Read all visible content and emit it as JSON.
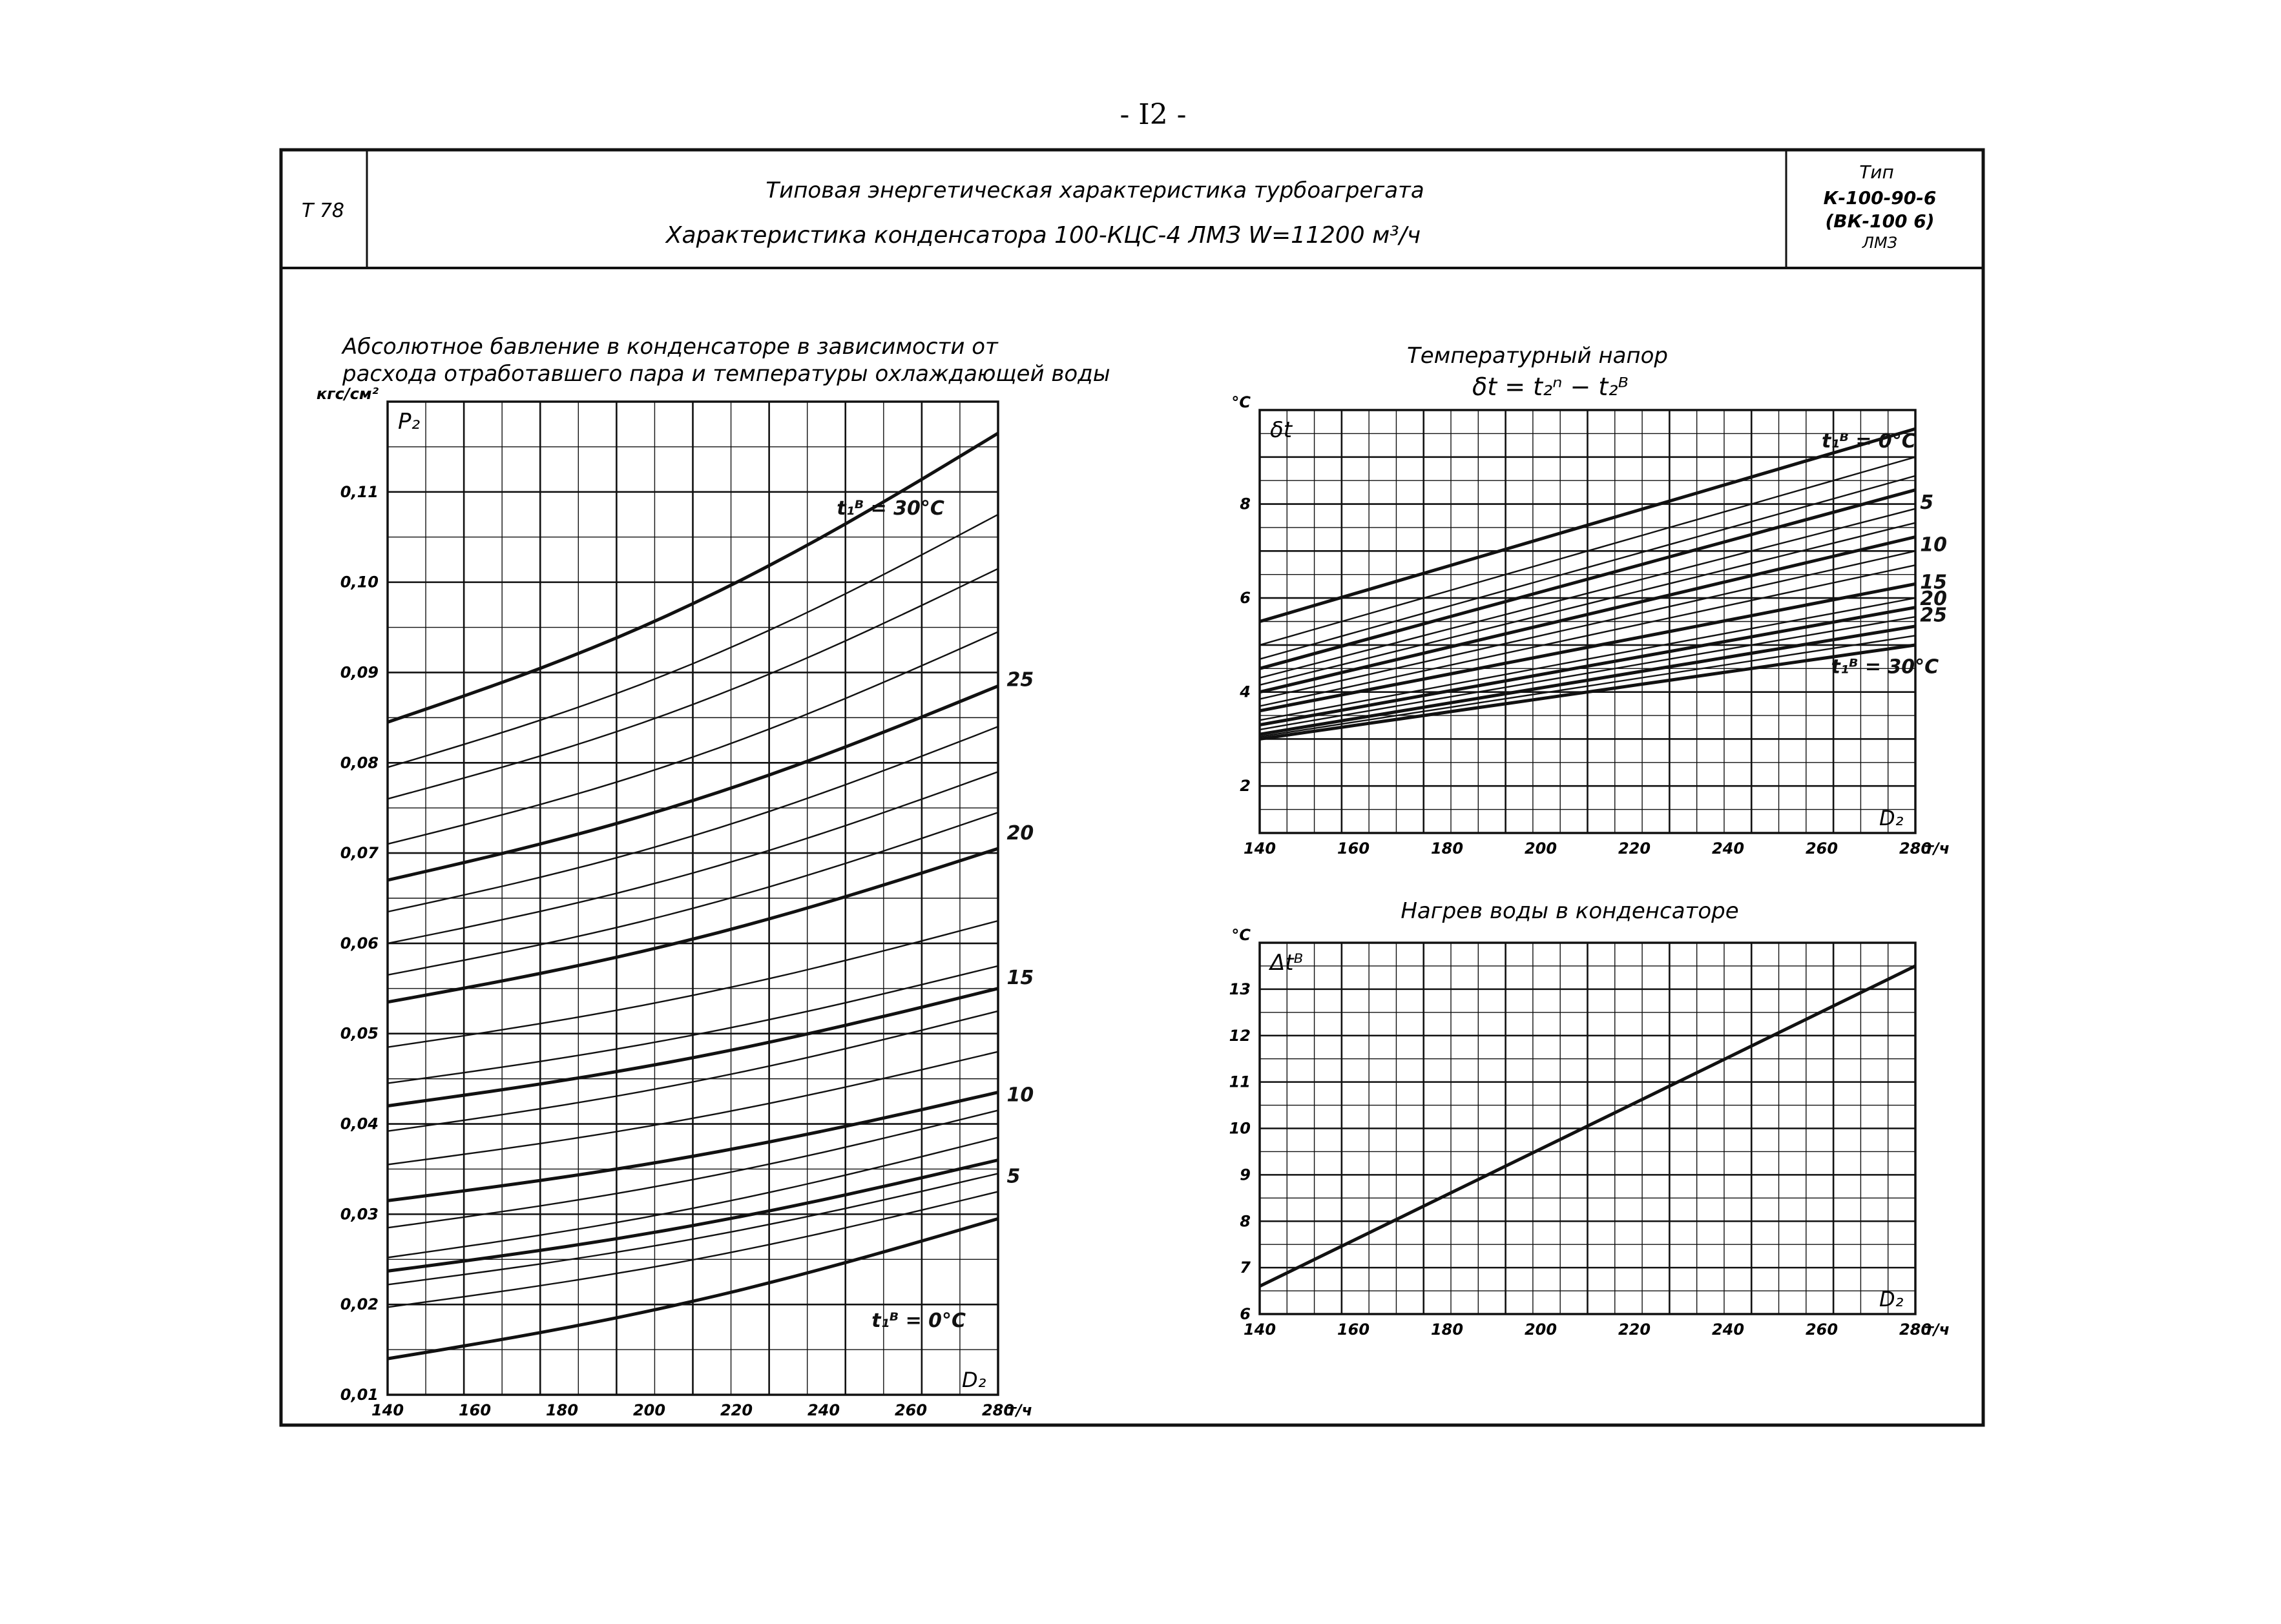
{
  "page": {
    "number": "- I2 -"
  },
  "header": {
    "code": "Т 78",
    "title_line1": "Типовая энергетическая характеристика турбоагрегата",
    "title_line2": "Характеристика конденсатора 100-КЦС-4 ЛМЗ W=11200 м³/ч",
    "type_label": "Тип",
    "type_line1": "К-100-90-6",
    "type_line2": "(ВК-100 6)",
    "type_line3": "ЛМЗ"
  },
  "colors": {
    "ink": "#111111",
    "paper": "#ffffff"
  },
  "chart_data": [
    {
      "id": "pressure",
      "type": "line",
      "title": "Абсолютное бавление в конденсаторе в зависимости от расхода отработавшего пара и температуры охлаждающей воды",
      "ylabel_unit": "кгс/см²",
      "ylabel": "P₂",
      "xlabel": "D₂",
      "xlabel_unit": "т/ч",
      "xlim": [
        140,
        280
      ],
      "ylim": [
        0.01,
        0.12
      ],
      "x_ticks": [
        "140",
        "160",
        "180",
        "200",
        "220",
        "240",
        "260",
        "280"
      ],
      "y_ticks": [
        "0,01",
        "0,02",
        "0,03",
        "0,04",
        "0,05",
        "0,06",
        "0,07",
        "0,08",
        "0,09",
        "0,10",
        "0,11"
      ],
      "series_labels": [
        {
          "text": "t₁ᴮ = 30°C",
          "x": 243,
          "y": 0.1075
        },
        {
          "text": "t₁ᴮ = 0°C",
          "x": 251,
          "y": 0.0175
        },
        {
          "text": "25",
          "x": 282,
          "y": 0.0885
        },
        {
          "text": "20",
          "x": 282,
          "y": 0.0715
        },
        {
          "text": "15",
          "x": 282,
          "y": 0.0555
        },
        {
          "text": "10",
          "x": 282,
          "y": 0.0425
        },
        {
          "text": "5",
          "x": 282,
          "y": 0.0335
        }
      ],
      "series": [
        {
          "t": 0,
          "bold": true,
          "x": [
            140,
            280
          ],
          "y": [
            0.014,
            0.0295
          ]
        },
        {
          "t": 2,
          "bold": false,
          "x": [
            140,
            280
          ],
          "y": [
            0.0197,
            0.0325
          ]
        },
        {
          "t": 4,
          "bold": false,
          "x": [
            140,
            280
          ],
          "y": [
            0.0222,
            0.0345
          ]
        },
        {
          "t": 5,
          "bold": true,
          "x": [
            140,
            280
          ],
          "y": [
            0.0237,
            0.036
          ]
        },
        {
          "t": 6,
          "bold": false,
          "x": [
            140,
            280
          ],
          "y": [
            0.0252,
            0.0385
          ]
        },
        {
          "t": 8,
          "bold": false,
          "x": [
            140,
            280
          ],
          "y": [
            0.0285,
            0.0415
          ]
        },
        {
          "t": 10,
          "bold": true,
          "x": [
            140,
            280
          ],
          "y": [
            0.0315,
            0.0435
          ]
        },
        {
          "t": 12,
          "bold": false,
          "x": [
            140,
            280
          ],
          "y": [
            0.0355,
            0.048
          ]
        },
        {
          "t": 14,
          "bold": false,
          "x": [
            140,
            280
          ],
          "y": [
            0.0392,
            0.0525
          ]
        },
        {
          "t": 15,
          "bold": true,
          "x": [
            140,
            280
          ],
          "y": [
            0.042,
            0.055
          ]
        },
        {
          "t": 16,
          "bold": false,
          "x": [
            140,
            280
          ],
          "y": [
            0.0445,
            0.0575
          ]
        },
        {
          "t": 18,
          "bold": false,
          "x": [
            140,
            280
          ],
          "y": [
            0.0485,
            0.0625
          ]
        },
        {
          "t": 20,
          "bold": true,
          "x": [
            140,
            280
          ],
          "y": [
            0.0535,
            0.0705
          ]
        },
        {
          "t": 21,
          "bold": false,
          "x": [
            140,
            280
          ],
          "y": [
            0.0565,
            0.0745
          ]
        },
        {
          "t": 22,
          "bold": false,
          "x": [
            140,
            280
          ],
          "y": [
            0.06,
            0.079
          ]
        },
        {
          "t": 24,
          "bold": false,
          "x": [
            140,
            280
          ],
          "y": [
            0.0635,
            0.084
          ]
        },
        {
          "t": 25,
          "bold": true,
          "x": [
            140,
            280
          ],
          "y": [
            0.067,
            0.0885
          ]
        },
        {
          "t": 26,
          "bold": false,
          "x": [
            140,
            280
          ],
          "y": [
            0.071,
            0.0945
          ]
        },
        {
          "t": 28,
          "bold": false,
          "x": [
            140,
            280
          ],
          "y": [
            0.076,
            0.1015
          ]
        },
        {
          "t": 29,
          "bold": false,
          "x": [
            140,
            280
          ],
          "y": [
            0.0795,
            0.1075
          ]
        },
        {
          "t": 30,
          "bold": true,
          "x": [
            140,
            280
          ],
          "y": [
            0.0845,
            0.1165
          ]
        }
      ]
    },
    {
      "id": "temp_head",
      "type": "line",
      "title": "Температурный напор",
      "subtitle": "δt = t₂ⁿ − t₂ᴮ",
      "ylabel_unit": "°С",
      "ylabel": "δt",
      "xlabel": "D₂",
      "xlabel_unit": "т/ч",
      "xlim": [
        140,
        280
      ],
      "ylim": [
        1,
        10
      ],
      "x_ticks": [
        "140",
        "160",
        "180",
        "200",
        "220",
        "240",
        "260",
        "280"
      ],
      "y_ticks": [
        "2",
        "4",
        "6",
        "8"
      ],
      "series_labels": [
        {
          "text": "t₁ᴮ = 0°C",
          "x": 260,
          "y": 9.2
        },
        {
          "text": "5",
          "x": 281,
          "y": 7.9
        },
        {
          "text": "10",
          "x": 281,
          "y": 7.0
        },
        {
          "text": "15",
          "x": 281,
          "y": 6.2
        },
        {
          "text": "20",
          "x": 281,
          "y": 5.85
        },
        {
          "text": "25",
          "x": 281,
          "y": 5.5
        },
        {
          "text": "t₁ᴮ = 30°C",
          "x": 262,
          "y": 4.4
        }
      ],
      "series": [
        {
          "t": 0,
          "bold": true,
          "x": [
            140,
            280
          ],
          "y": [
            5.5,
            9.6
          ]
        },
        {
          "t": 2,
          "bold": false,
          "x": [
            140,
            280
          ],
          "y": [
            5.0,
            9.0
          ]
        },
        {
          "t": 4,
          "bold": false,
          "x": [
            140,
            280
          ],
          "y": [
            4.7,
            8.6
          ]
        },
        {
          "t": 5,
          "bold": true,
          "x": [
            140,
            280
          ],
          "y": [
            4.5,
            8.3
          ]
        },
        {
          "t": 7,
          "bold": false,
          "x": [
            140,
            280
          ],
          "y": [
            4.3,
            7.9
          ]
        },
        {
          "t": 8,
          "bold": false,
          "x": [
            140,
            280
          ],
          "y": [
            4.15,
            7.6
          ]
        },
        {
          "t": 10,
          "bold": true,
          "x": [
            140,
            280
          ],
          "y": [
            4.0,
            7.3
          ]
        },
        {
          "t": 12,
          "bold": false,
          "x": [
            140,
            280
          ],
          "y": [
            3.85,
            7.0
          ]
        },
        {
          "t": 14,
          "bold": false,
          "x": [
            140,
            280
          ],
          "y": [
            3.7,
            6.7
          ]
        },
        {
          "t": 15,
          "bold": true,
          "x": [
            140,
            280
          ],
          "y": [
            3.6,
            6.3
          ]
        },
        {
          "t": 18,
          "bold": false,
          "x": [
            140,
            280
          ],
          "y": [
            3.4,
            6.0
          ]
        },
        {
          "t": 20,
          "bold": true,
          "x": [
            140,
            280
          ],
          "y": [
            3.3,
            5.8
          ]
        },
        {
          "t": 22,
          "bold": false,
          "x": [
            140,
            280
          ],
          "y": [
            3.2,
            5.6
          ]
        },
        {
          "t": 25,
          "bold": true,
          "x": [
            140,
            280
          ],
          "y": [
            3.1,
            5.4
          ]
        },
        {
          "t": 28,
          "bold": false,
          "x": [
            140,
            280
          ],
          "y": [
            3.05,
            5.2
          ]
        },
        {
          "t": 30,
          "bold": true,
          "x": [
            140,
            280
          ],
          "y": [
            3.0,
            5.0
          ]
        }
      ]
    },
    {
      "id": "water_heat",
      "type": "line",
      "title": "Нагрев воды в конденсаторе",
      "ylabel_unit": "°С",
      "ylabel": "Δtᴮ",
      "xlabel": "D₂",
      "xlabel_unit": "т/ч",
      "xlim": [
        140,
        280
      ],
      "ylim": [
        6,
        14
      ],
      "x_ticks": [
        "140",
        "160",
        "180",
        "200",
        "220",
        "240",
        "260",
        "280"
      ],
      "y_ticks": [
        "6",
        "7",
        "8",
        "9",
        "10",
        "11",
        "12",
        "13"
      ],
      "series": [
        {
          "bold": true,
          "x": [
            140,
            280
          ],
          "y": [
            6.6,
            13.5
          ]
        }
      ]
    }
  ]
}
